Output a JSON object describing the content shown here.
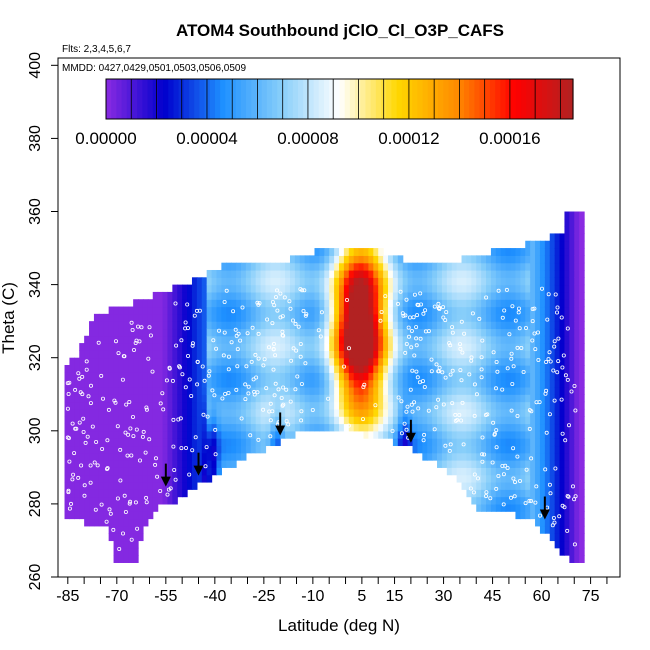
{
  "chart_data": {
    "type": "heatmap",
    "title": "ATOM4 Southbound jClO_Cl_O3P_CAFS",
    "subtitle_flights": "Flts: 2,3,4,5,6,7",
    "subtitle_dates": "MMDD: 0427,0429,0501,0503,0506,0509",
    "xlabel": "Latitude (deg N)",
    "ylabel": "Theta (C)",
    "xlim": [
      -88,
      84
    ],
    "ylim": [
      260,
      402
    ],
    "x_ticks": [
      -85,
      -70,
      -55,
      -40,
      -25,
      -10,
      5,
      15,
      30,
      45,
      60,
      75
    ],
    "x_tick_labels": [
      "-85",
      "-70",
      "-55",
      "-40",
      "-25",
      "-10",
      "5",
      "15",
      "30",
      "45",
      "60",
      "75"
    ],
    "y_ticks": [
      260,
      280,
      300,
      320,
      340,
      360,
      380,
      400
    ],
    "y_tick_labels": [
      "260",
      "280",
      "300",
      "320",
      "340",
      "360",
      "380",
      "400"
    ],
    "colorbar": {
      "range": [
        0,
        0.000185
      ],
      "tick_values": [
        0,
        4e-05,
        8e-05,
        0.00012,
        0.00016
      ],
      "tick_labels": [
        "0.00000",
        "0.00004",
        "0.00008",
        "0.00012",
        "0.00016"
      ],
      "colors": [
        "#8a2be2",
        "#0000cd",
        "#1e90ff",
        "#87cefa",
        "#ffffff",
        "#ffd700",
        "#ff8c00",
        "#ff0000",
        "#b22222"
      ]
    },
    "ground_arrows": [
      {
        "lat": -55,
        "theta": 285
      },
      {
        "lat": -45,
        "theta": 288
      },
      {
        "lat": -20,
        "theta": 299
      },
      {
        "lat": 20,
        "theta": 297
      },
      {
        "lat": 61,
        "theta": 276
      }
    ],
    "dots_color": "#ffffff",
    "grid": false
  }
}
